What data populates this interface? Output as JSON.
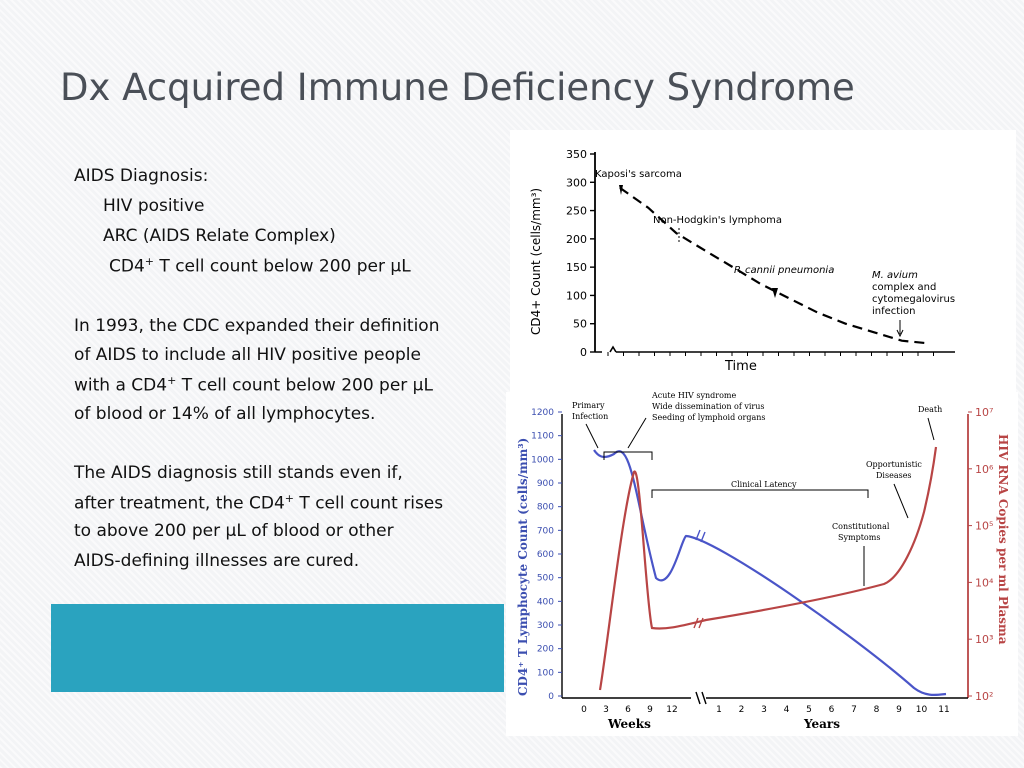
{
  "slide": {
    "title": "Dx Acquired Immune Deficiency Syndrome",
    "lines": {
      "aids_dx": "AIDS Diagnosis:",
      "hiv_pos": "HIV positive",
      "arc": "ARC (AIDS Relate Complex)",
      "cd4_a": "CD4",
      "cd4_sup": "+",
      "cd4_b": " T cell count below 200 per µL",
      "p1_l1": "In 1993, the CDC expanded their definition",
      "p1_l2": "of AIDS to include all HIV positive people",
      "p1_l3a": "with a CD4",
      "p1_l3sup": "+",
      "p1_l3b": " T cell count below 200 per µL",
      "p1_l4": "of blood or 14% of all lymphocytes.",
      "p2_l1": "The AIDS diagnosis still stands even if,",
      "p2_l2a": "after treatment, the CD4",
      "p2_l2sup": "+",
      "p2_l2b": " T cell count rises",
      "p2_l3": "to above 200 per µL of blood or other",
      "p2_l4": "AIDS-defining illnesses are cured."
    },
    "colors": {
      "title": "#4a4f57",
      "teal_band": "#2aa3bf",
      "cd4_line": "#4a55c8",
      "rna_line": "#b84545"
    }
  },
  "chart_data": [
    {
      "type": "line",
      "xlabel": "Time",
      "ylabel": "CD4+ Count (cells/mm³)",
      "ylim": [
        0,
        350
      ],
      "yticks": [
        "0",
        "50",
        "100",
        "150",
        "200",
        "250",
        "300",
        "350"
      ],
      "series": [
        {
          "values": [
            290,
            255,
            210,
            180,
            150,
            120,
            95,
            70,
            50,
            35,
            20,
            15
          ]
        }
      ],
      "annotations": [
        "Kaposi's sarcoma",
        "Non-Hodgkin's lymphoma",
        "P. cannii pneumonia",
        "M. avium",
        "complex and",
        "cytomegalovirus",
        "infection"
      ]
    },
    {
      "type": "line",
      "xlabel_left": "Weeks",
      "xlabel_right": "Years",
      "xticks_weeks": [
        "0",
        "3",
        "6",
        "9",
        "12"
      ],
      "xticks_years": [
        "1",
        "2",
        "3",
        "4",
        "5",
        "6",
        "7",
        "8",
        "9",
        "10",
        "11"
      ],
      "ylabel_left": "CD4⁺ T Lymphocyte Count (cells/mm³)",
      "ylim_left": [
        0,
        1200
      ],
      "yticks_left": [
        "0",
        "100",
        "200",
        "300",
        "400",
        "500",
        "600",
        "700",
        "800",
        "900",
        "1000",
        "1100",
        "1200"
      ],
      "ylabel_right": "HIV RNA Copies per ml Plasma",
      "yticks_right": [
        "10²",
        "10³",
        "10⁴",
        "10⁵",
        "10⁶",
        "10⁷"
      ],
      "annotations": {
        "primary": [
          "Primary",
          "Infection"
        ],
        "acute": [
          "Acute HIV syndrome",
          "Wide dissemination of virus",
          "Seeding of lymphoid organs"
        ],
        "latency": "Clinical Latency",
        "death": "Death",
        "oppo": [
          "Opportunistic",
          "Diseases"
        ],
        "const": [
          "Constitutional",
          "Symptoms"
        ]
      }
    }
  ]
}
